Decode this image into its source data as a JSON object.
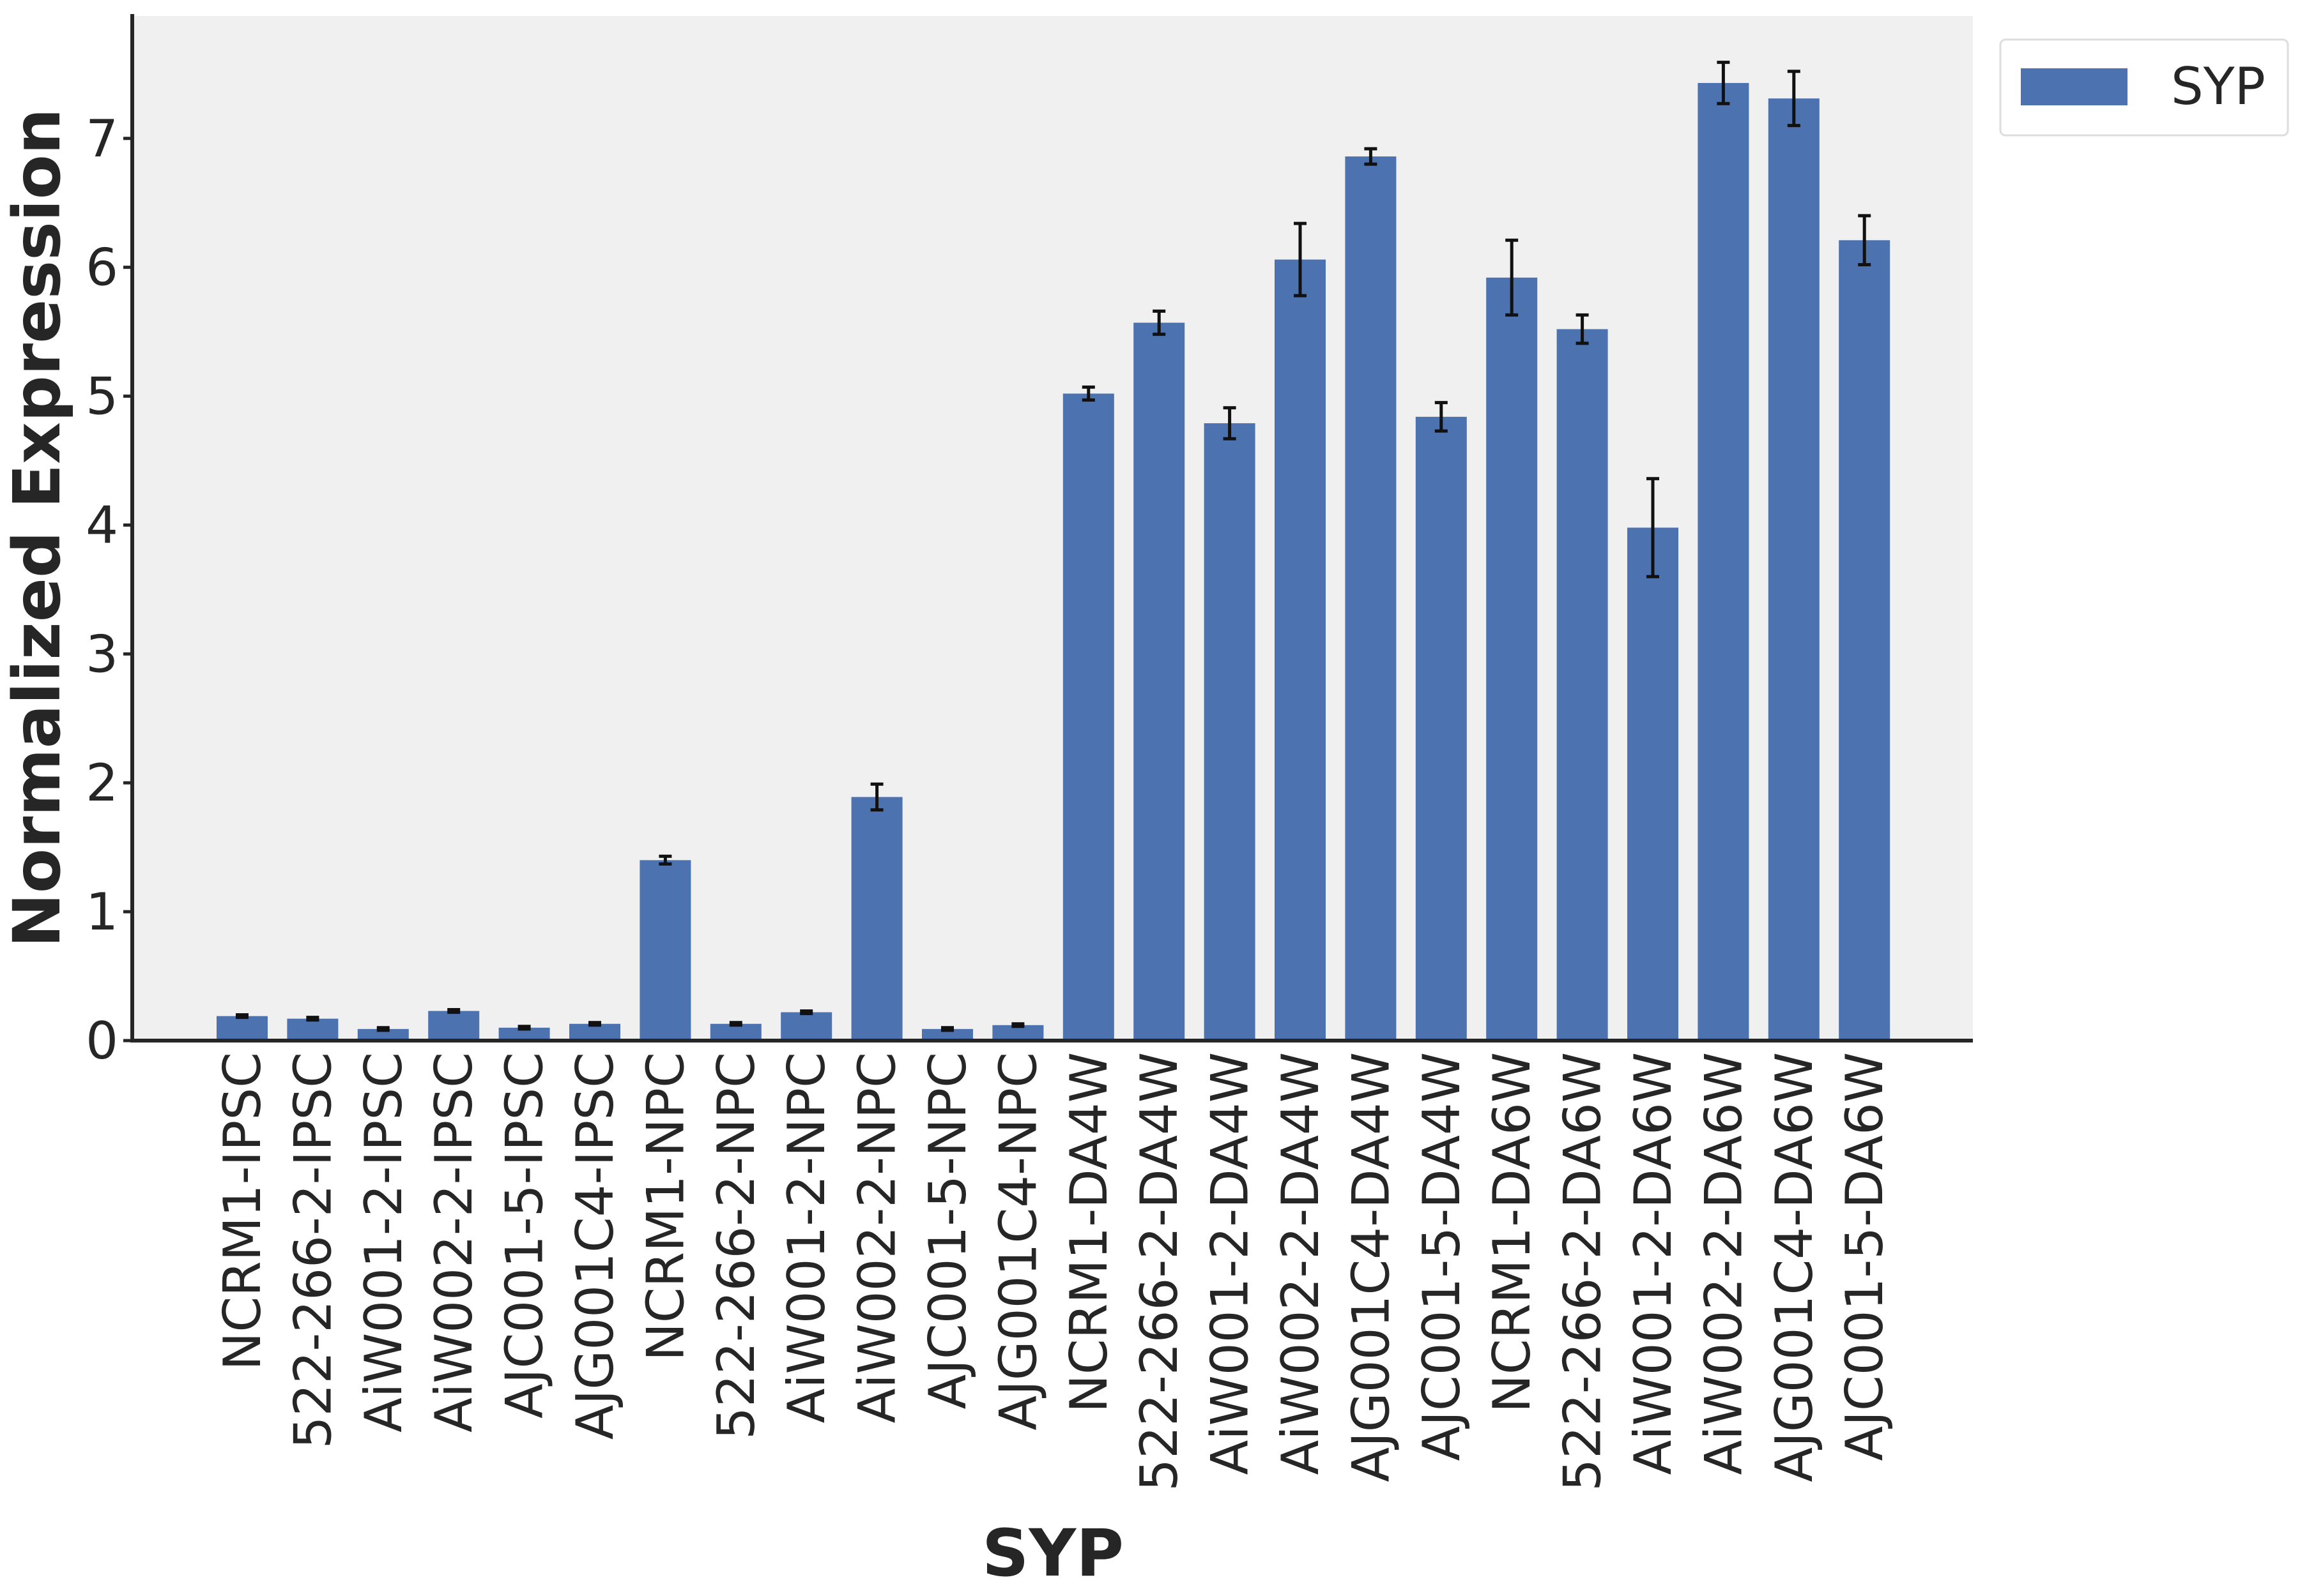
{
  "chart_data": {
    "type": "bar",
    "title": "",
    "xlabel": "SYP",
    "ylabel": "Normalized Expression",
    "ylim": [
      0,
      7.95
    ],
    "yticks": [
      0,
      1,
      2,
      3,
      4,
      5,
      6,
      7
    ],
    "grid": false,
    "legend_position": "outside top-right",
    "colors": {
      "bar": "#4c72b0",
      "plot_background": "#f0f0f0",
      "error_bar": "#111111",
      "axis": "#262626"
    },
    "categories": [
      "NCRM1-IPSC",
      "522-266-2-IPSC",
      "AiW001-2-IPSC",
      "AiW002-2-IPSC",
      "AJC001-5-IPSC",
      "AJG001C4-IPSC",
      "NCRM1-NPC",
      "522-266-2-NPC",
      "AiW001-2-NPC",
      "AiW002-2-NPC",
      "AJC001-5-NPC",
      "AJG001C4-NPC",
      "NCRM1-DA4W",
      "522-266-2-DA4W",
      "AiW001-2-DA4W",
      "AiW002-2-DA4W",
      "AJG001C4-DA4W",
      "AJC001-5-DA4W",
      "NCRM1-DA6W",
      "522-266-2-DA6W",
      "AiW001-2-DA6W",
      "AiW002-2-DA6W",
      "AJG001C4-DA6W",
      "AJC001-5-DA6W"
    ],
    "series": [
      {
        "name": "SYP",
        "values": [
          0.19,
          0.17,
          0.09,
          0.23,
          0.1,
          0.13,
          1.4,
          0.13,
          0.22,
          1.89,
          0.09,
          0.12,
          5.02,
          5.57,
          4.79,
          6.06,
          6.86,
          4.84,
          5.92,
          5.52,
          3.98,
          7.43,
          7.31,
          6.21
        ],
        "errors": [
          0.01,
          0.01,
          0.01,
          0.01,
          0.01,
          0.01,
          0.03,
          0.01,
          0.01,
          0.1,
          0.01,
          0.01,
          0.05,
          0.09,
          0.12,
          0.28,
          0.06,
          0.11,
          0.29,
          0.11,
          0.38,
          0.16,
          0.21,
          0.19
        ]
      }
    ]
  }
}
